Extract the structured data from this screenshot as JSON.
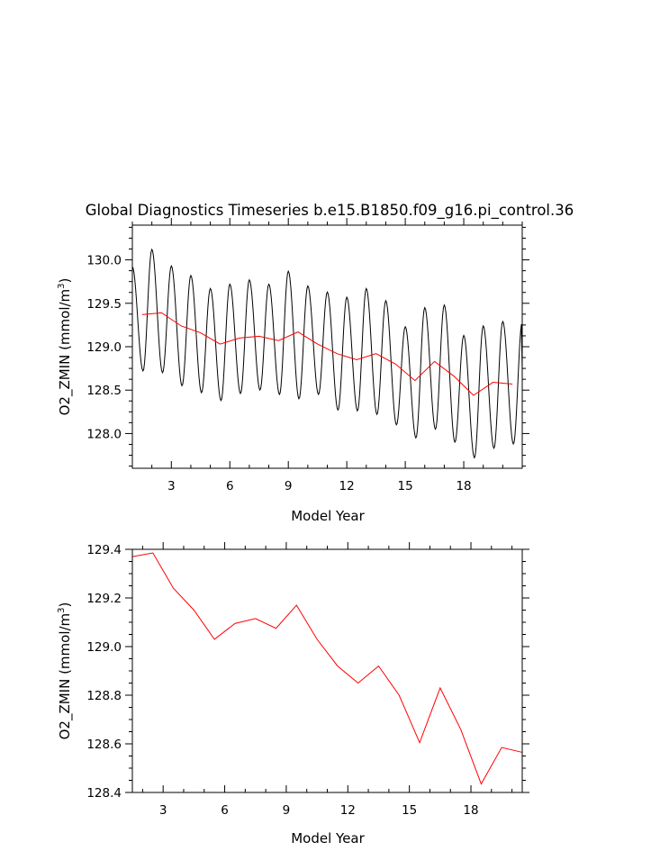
{
  "figure_title": "Global Diagnostics Timeseries b.e15.B1850.f09_g16.pi_control.36",
  "colors": {
    "monthly": "#000000",
    "annual": "#ff0000",
    "axes": "#000000"
  },
  "chart_data": [
    {
      "type": "line",
      "panel": "top",
      "xlabel": "Model Year",
      "ylabel_main": "O2_ZMIN (mmol/m",
      "ylabel_sup": "3",
      "ylabel_end": ")",
      "xlim": [
        1,
        21
      ],
      "ylim": [
        127.6,
        130.4
      ],
      "x_ticks": [
        3,
        6,
        9,
        12,
        15,
        18
      ],
      "y_ticks": [
        128.0,
        128.5,
        129.0,
        129.5,
        130.0
      ],
      "y_tick_labels": [
        "128.0",
        "128.5",
        "129.0",
        "129.5",
        "130.0"
      ],
      "series": [
        {
          "role": "monthly",
          "color": "#000000",
          "peaks": [
            129.92,
            130.12,
            129.93,
            129.82,
            129.67,
            129.72,
            129.77,
            129.72,
            129.87,
            129.7,
            129.63,
            129.57,
            129.67,
            129.53,
            129.23,
            129.45,
            129.48,
            129.13,
            129.24,
            129.29
          ],
          "troughs": [
            128.72,
            128.7,
            128.55,
            128.47,
            128.38,
            128.46,
            128.5,
            128.45,
            128.4,
            128.45,
            128.27,
            128.26,
            128.22,
            128.1,
            127.95,
            128.05,
            127.9,
            127.72,
            127.83,
            127.88
          ],
          "peak_phase": 0.0,
          "trough_phase": 0.55
        },
        {
          "role": "annual",
          "color": "#ff0000",
          "x": [
            1.5,
            2.5,
            3.5,
            4.5,
            5.5,
            6.5,
            7.5,
            8.5,
            9.5,
            10.5,
            11.5,
            12.5,
            13.5,
            14.5,
            15.5,
            16.5,
            17.5,
            18.5,
            19.5,
            20.5
          ],
          "y": [
            129.37,
            129.39,
            129.24,
            129.16,
            129.03,
            129.1,
            129.12,
            129.07,
            129.17,
            129.03,
            128.92,
            128.85,
            128.92,
            128.8,
            128.61,
            128.83,
            128.66,
            128.44,
            128.59,
            128.57
          ]
        }
      ]
    },
    {
      "type": "line",
      "panel": "bottom",
      "xlabel": "Model Year",
      "ylabel_main": "O2_ZMIN (mmol/m",
      "ylabel_sup": "3",
      "ylabel_end": ")",
      "xlim": [
        1.5,
        20.5
      ],
      "ylim": [
        128.4,
        129.4
      ],
      "x_ticks": [
        3,
        6,
        9,
        12,
        15,
        18
      ],
      "y_ticks": [
        128.4,
        128.6,
        128.8,
        129.0,
        129.2,
        129.4
      ],
      "y_tick_labels": [
        "128.4",
        "128.6",
        "128.8",
        "129.0",
        "129.2",
        "129.4"
      ],
      "series": [
        {
          "role": "annual",
          "color": "#ff0000",
          "x": [
            1.5,
            2.5,
            3.5,
            4.5,
            5.5,
            6.5,
            7.5,
            8.5,
            9.5,
            10.5,
            11.5,
            12.5,
            13.5,
            14.5,
            15.5,
            16.5,
            17.5,
            18.5,
            19.5,
            20.5
          ],
          "y": [
            129.37,
            129.385,
            129.24,
            129.15,
            129.03,
            129.095,
            129.115,
            129.075,
            129.17,
            129.03,
            128.92,
            128.85,
            128.92,
            128.8,
            128.605,
            128.83,
            128.66,
            128.435,
            128.585,
            128.565
          ]
        }
      ]
    }
  ]
}
